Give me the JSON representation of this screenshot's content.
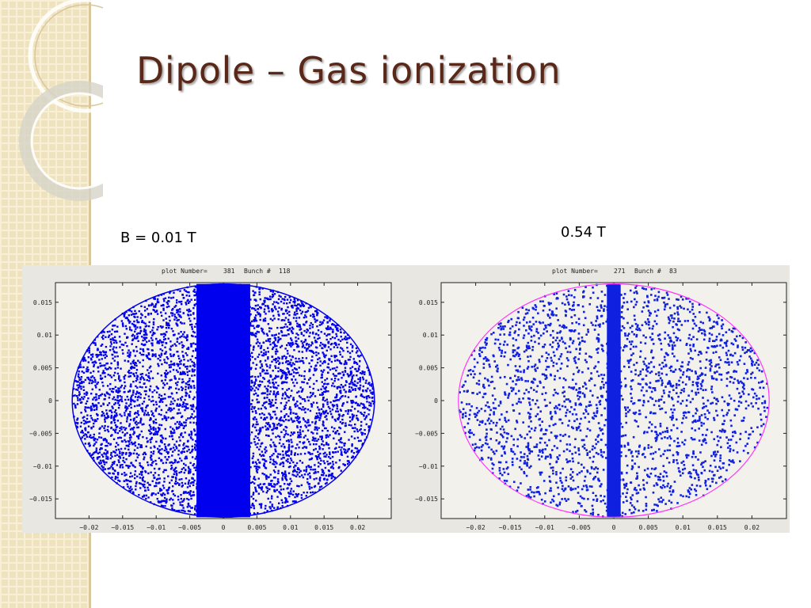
{
  "slide": {
    "title": "Dipole – Gas ionization"
  },
  "panels": {
    "left": {
      "field_label": "B = 0.01 T"
    },
    "right": {
      "field_label": "0.54 T"
    }
  },
  "chart_data": [
    {
      "type": "scatter",
      "header": {
        "plot_label": "plot Number=",
        "plot_number": "381",
        "bunch_label": "Bunch #",
        "bunch_number": "118"
      },
      "xlim": [
        -0.025,
        0.025
      ],
      "ylim": [
        -0.018,
        0.018
      ],
      "x_ticks": [
        -0.02,
        -0.015,
        -0.01,
        -0.005,
        0,
        0.005,
        0.01,
        0.015,
        0.02
      ],
      "x_tick_labels": [
        "−0.02",
        "−0.015",
        "−0.01",
        "−0.005",
        "0",
        "0.005",
        "0.01",
        "0.015",
        "0.02"
      ],
      "y_ticks": [
        0.015,
        0.01,
        0.005,
        0,
        -0.005,
        -0.01,
        -0.015
      ],
      "y_tick_labels": [
        "0.015",
        "0.01",
        "0.005",
        "0",
        "−0.005",
        "−0.01",
        "−0.015"
      ],
      "ellipse": {
        "a": 0.0225,
        "b": 0.0178
      },
      "central_band_half_width": 0.004,
      "point_color": "#0000ee",
      "boundary_color": null
    },
    {
      "type": "scatter",
      "header": {
        "plot_label": "plot Number=",
        "plot_number": "271",
        "bunch_label": "Bunch #",
        "bunch_number": "83"
      },
      "xlim": [
        -0.025,
        0.025
      ],
      "ylim": [
        -0.018,
        0.018
      ],
      "x_ticks": [
        -0.02,
        -0.015,
        -0.01,
        -0.005,
        0,
        0.005,
        0.01,
        0.015,
        0.02
      ],
      "x_tick_labels": [
        "−0.02",
        "−0.015",
        "−0.01",
        "−0.005",
        "0",
        "0.005",
        "0.01",
        "0.015",
        "0.02"
      ],
      "y_ticks": [
        0.015,
        0.01,
        0.005,
        0,
        -0.005,
        -0.01,
        -0.015
      ],
      "y_tick_labels": [
        "0.015",
        "0.01",
        "0.005",
        "0",
        "−0.005",
        "−0.01",
        "−0.015"
      ],
      "ellipse": {
        "a": 0.0225,
        "b": 0.0178
      },
      "central_band_half_width": 0.001,
      "point_color": "#1020e0",
      "boundary_color": "#ff33ff"
    }
  ]
}
